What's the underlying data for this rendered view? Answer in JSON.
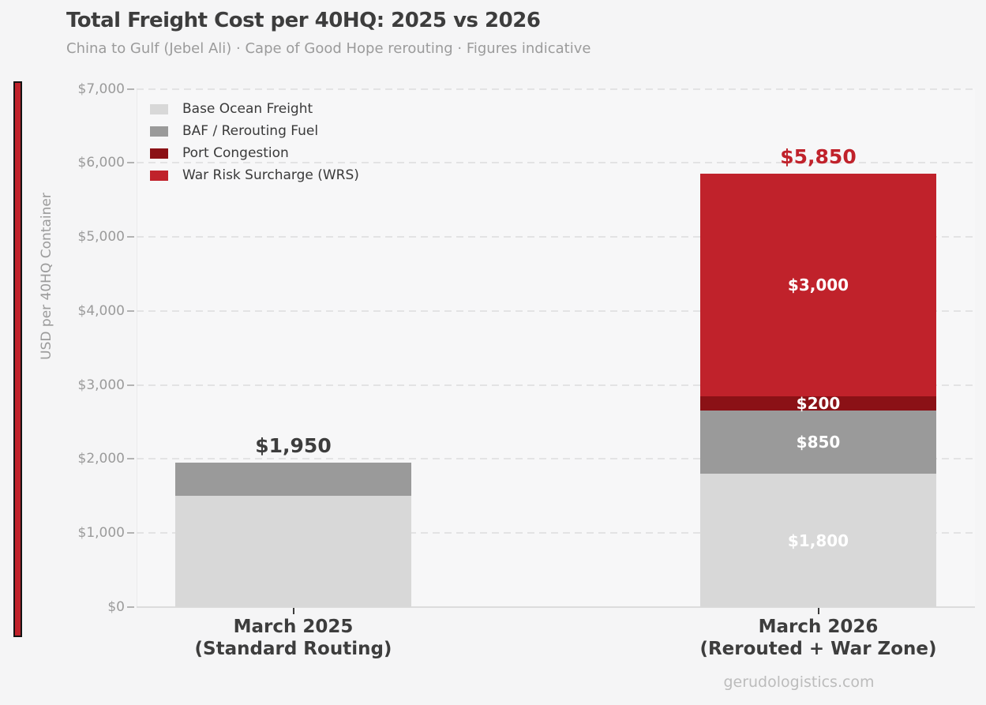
{
  "watermark": "gerudologistics.com",
  "chart_data": {
    "type": "bar",
    "stacked": true,
    "title": "Total Freight Cost per 40HQ: 2025 vs 2026",
    "subtitle": "China to Gulf (Jebel Ali) · Cape of Good Hope rerouting · Figures indicative",
    "ylabel": "USD per 40HQ Container",
    "ylim": [
      0,
      7000
    ],
    "ytick_labels": [
      "$0",
      "$1,000",
      "$2,000",
      "$3,000",
      "$4,000",
      "$5,000",
      "$6,000",
      "$7,000"
    ],
    "grid": "horizontal-dashed",
    "legend_position": "upper-left-inside",
    "categories": [
      [
        "March 2025",
        "(Standard Routing)"
      ],
      [
        "March 2026",
        "(Rerouted + War Zone)"
      ]
    ],
    "series": [
      {
        "name": "Base Ocean Freight",
        "color": "#d8d8d8",
        "values": [
          1500,
          1800
        ],
        "labels": [
          "",
          "$1,800"
        ]
      },
      {
        "name": "BAF / Rerouting Fuel",
        "color": "#9a9a9a",
        "values": [
          450,
          850
        ],
        "labels": [
          "",
          "$850"
        ]
      },
      {
        "name": "Port Congestion",
        "color": "#8b1116",
        "values": [
          0,
          200
        ],
        "labels": [
          "",
          "$200"
        ]
      },
      {
        "name": "War Risk Surcharge (WRS)",
        "color": "#c0222b",
        "values": [
          0,
          3000
        ],
        "labels": [
          "",
          "$3,000"
        ]
      }
    ],
    "totals": [
      {
        "label": "$1,950",
        "color": "#3d3d3d"
      },
      {
        "label": "$5,850",
        "color": "#c0222b"
      }
    ],
    "segment_label_color": "#ffffff",
    "accent_color": "#c0222b"
  }
}
